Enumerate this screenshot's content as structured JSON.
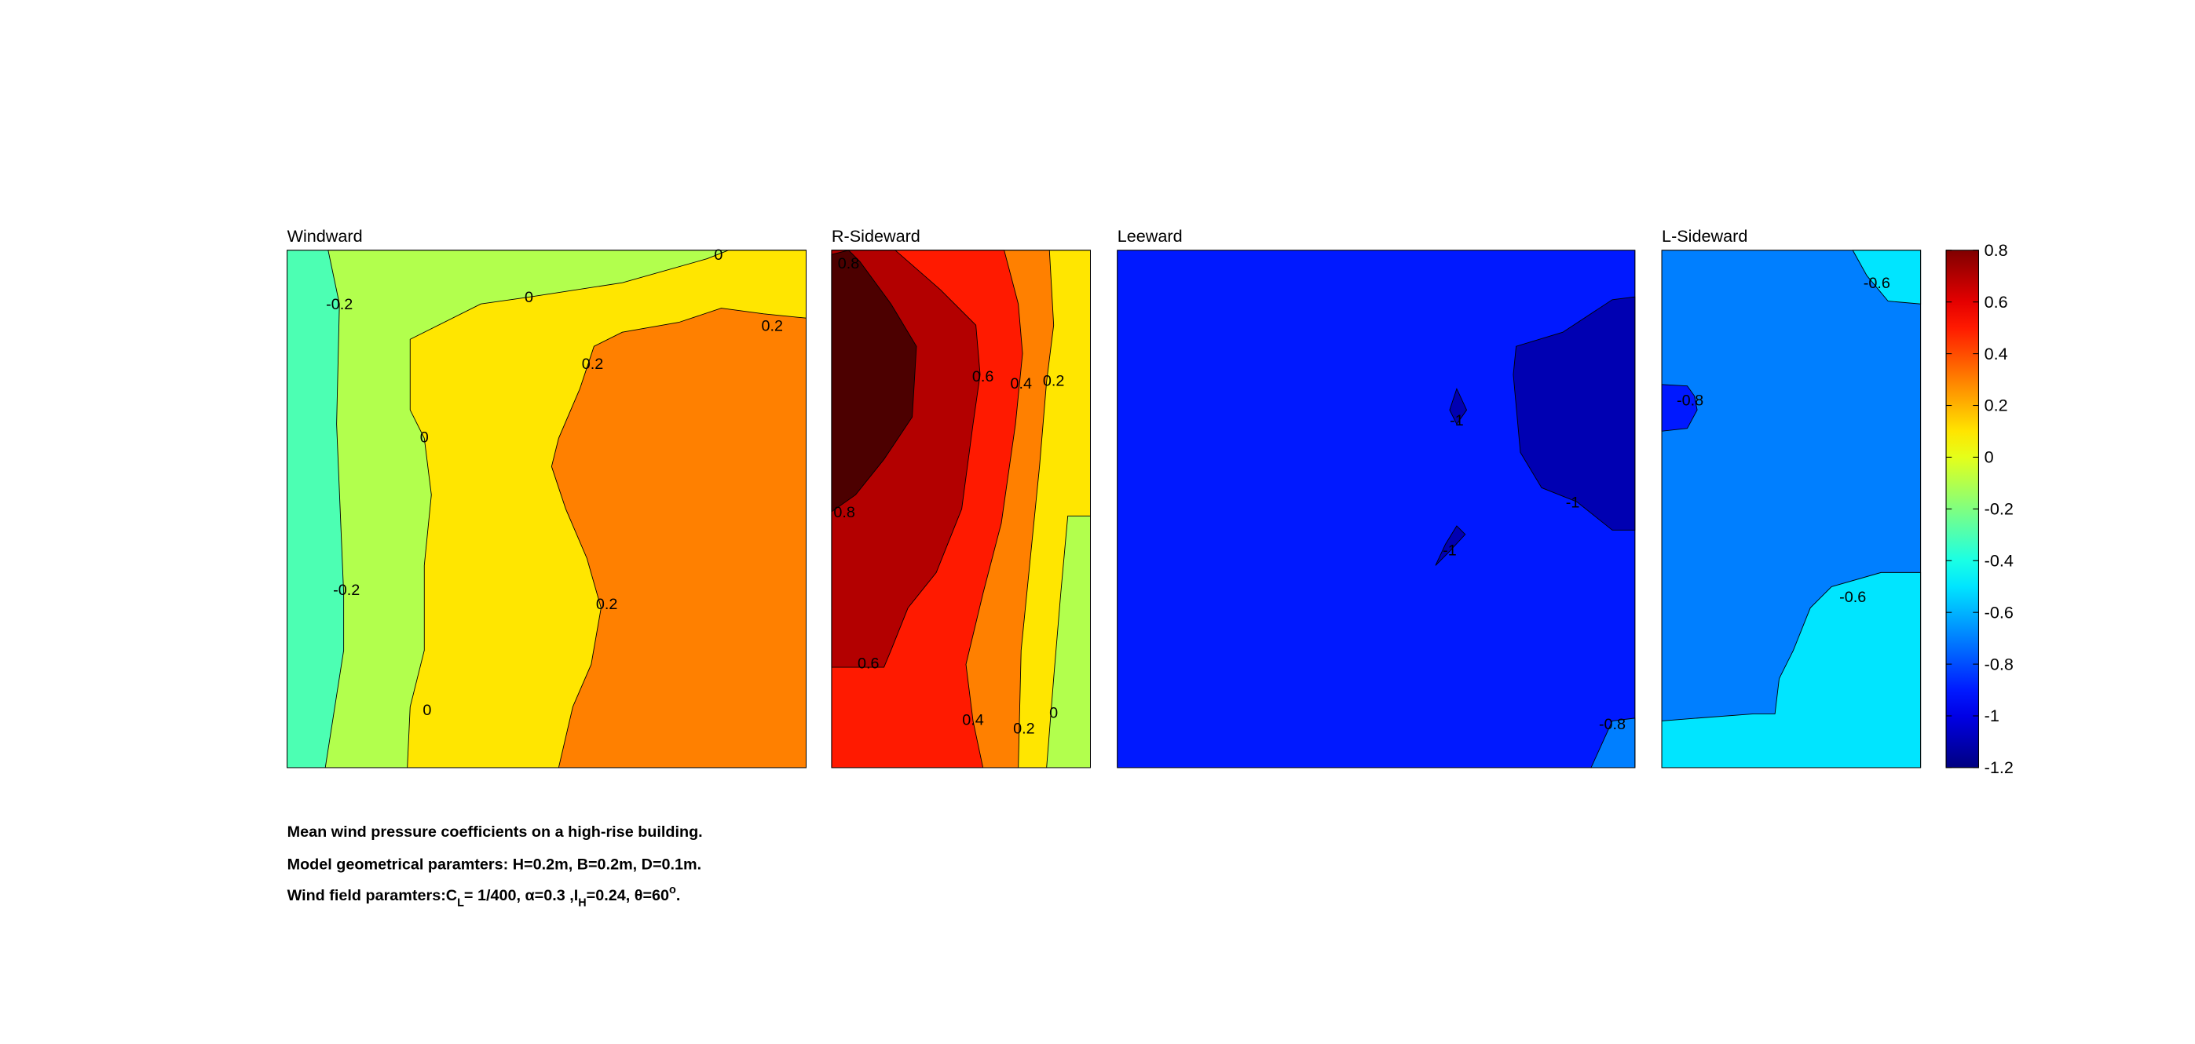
{
  "chart_data": {
    "type": "contour",
    "colormap": "jet",
    "clim": [
      -1.2,
      0.8
    ],
    "cticks": [
      -1.2,
      -1,
      -0.8,
      -0.6,
      -0.4,
      -0.2,
      0,
      0.2,
      0.4,
      0.6,
      0.8
    ],
    "panels": [
      {
        "title": "Windward",
        "fills": [
          -0.4,
          -0.2,
          0,
          0.2
        ],
        "labels": [
          -0.2,
          0,
          0,
          0.2,
          0.2,
          0,
          -0.2,
          0.2,
          0
        ]
      },
      {
        "title": "R-Sideward",
        "fills": [
          -0.2,
          0,
          0.2,
          0.4,
          0.6,
          0.8
        ],
        "labels": [
          0.8,
          0.6,
          0.4,
          0.2,
          0.8,
          0.6,
          0.4,
          0.2,
          0
        ]
      },
      {
        "title": "Leeward",
        "fills": [
          -1,
          -1.2,
          -1.2,
          -1.2,
          -0.8
        ],
        "labels": [
          -1,
          -1,
          -1,
          -0.8
        ]
      },
      {
        "title": "L-Sideward",
        "fills": [
          -0.8,
          -0.6,
          -0.6,
          -1
        ],
        "labels": [
          -0.6,
          -0.8,
          -0.6
        ]
      }
    ],
    "caption": [
      "Mean wind pressure coefficients on a high-rise building.",
      "Model geometrical paramters: H=0.2m, B=0.2m, D=0.1m.",
      [
        "Wind field paramters:C",
        "L",
        "= 1/400, α=0.3 ,I",
        "H",
        "=0.24, θ=60",
        "o",
        "."
      ]
    ]
  }
}
